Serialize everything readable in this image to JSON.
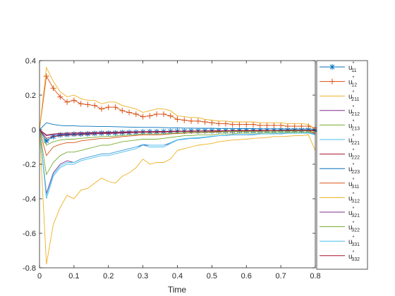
{
  "chart_data": {
    "type": "line",
    "title": "",
    "xlabel": "Time",
    "ylabel": "",
    "xlim": [
      0,
      0.8
    ],
    "ylim": [
      -0.8,
      0.4
    ],
    "xticks": [
      "0",
      "0.1",
      "0.2",
      "0.3",
      "0.4",
      "0.5",
      "0.6",
      "0.7",
      "0.8"
    ],
    "yticks": [
      "0.4",
      "0.2",
      "0",
      "-0.2",
      "-0.4",
      "-0.6",
      "-0.8"
    ],
    "grid": false,
    "legend_position": "outside right",
    "x": [
      0,
      0.02,
      0.04,
      0.06,
      0.08,
      0.1,
      0.12,
      0.14,
      0.16,
      0.18,
      0.2,
      0.22,
      0.24,
      0.26,
      0.28,
      0.3,
      0.32,
      0.34,
      0.36,
      0.38,
      0.4,
      0.42,
      0.44,
      0.46,
      0.48,
      0.5,
      0.52,
      0.54,
      0.56,
      0.58,
      0.6,
      0.62,
      0.64,
      0.66,
      0.68,
      0.7,
      0.72,
      0.74,
      0.76,
      0.78,
      0.8
    ],
    "series": [
      {
        "name": "u*11",
        "base": "u",
        "sub": "11",
        "color": "#0072BD",
        "marker": "star",
        "values": [
          0,
          -0.065,
          -0.04,
          -0.03,
          -0.028,
          -0.026,
          -0.025,
          -0.024,
          -0.022,
          -0.02,
          -0.02,
          -0.019,
          -0.017,
          -0.016,
          -0.015,
          -0.013,
          -0.012,
          -0.012,
          -0.011,
          -0.01,
          -0.009,
          -0.009,
          -0.008,
          -0.008,
          -0.007,
          -0.007,
          -0.006,
          -0.006,
          -0.006,
          -0.005,
          -0.005,
          -0.005,
          -0.004,
          -0.004,
          -0.004,
          -0.003,
          -0.003,
          -0.003,
          -0.003,
          -0.002,
          -0.005
        ]
      },
      {
        "name": "u*12",
        "base": "u",
        "sub": "12",
        "color": "#D95319",
        "marker": "plus",
        "values": [
          0,
          0.31,
          0.24,
          0.19,
          0.16,
          0.17,
          0.15,
          0.145,
          0.14,
          0.12,
          0.13,
          0.13,
          0.11,
          0.1,
          0.09,
          0.075,
          0.08,
          0.09,
          0.09,
          0.08,
          0.06,
          0.055,
          0.05,
          0.05,
          0.045,
          0.04,
          0.035,
          0.035,
          0.03,
          0.03,
          0.03,
          0.03,
          0.025,
          0.025,
          0.025,
          0.025,
          0.02,
          0.02,
          0.02,
          0.02,
          0.01
        ]
      },
      {
        "name": "u*211",
        "base": "u",
        "sub": "211",
        "color": "#EDB120",
        "marker": "none",
        "values": [
          0,
          0.36,
          0.28,
          0.22,
          0.19,
          0.2,
          0.18,
          0.17,
          0.17,
          0.15,
          0.16,
          0.16,
          0.14,
          0.13,
          0.12,
          0.1,
          0.11,
          0.12,
          0.12,
          0.11,
          0.08,
          0.075,
          0.07,
          0.07,
          0.06,
          0.055,
          0.05,
          0.05,
          0.045,
          0.045,
          0.045,
          0.045,
          0.04,
          0.04,
          0.04,
          0.04,
          0.035,
          0.035,
          0.035,
          0.03,
          0.0
        ]
      },
      {
        "name": "u*212",
        "base": "u",
        "sub": "212",
        "color": "#7E2F8E",
        "marker": "none",
        "values": [
          0,
          -0.37,
          -0.25,
          -0.2,
          -0.18,
          -0.19,
          -0.17,
          -0.16,
          -0.15,
          -0.14,
          -0.14,
          -0.13,
          -0.12,
          -0.11,
          -0.1,
          -0.09,
          -0.09,
          -0.09,
          -0.09,
          -0.08,
          -0.06,
          -0.055,
          -0.05,
          -0.05,
          -0.045,
          -0.04,
          -0.035,
          -0.035,
          -0.03,
          -0.03,
          -0.03,
          -0.03,
          -0.025,
          -0.025,
          -0.025,
          -0.025,
          -0.02,
          -0.02,
          -0.02,
          -0.02,
          -0.025
        ]
      },
      {
        "name": "u*213",
        "base": "u",
        "sub": "213",
        "color": "#77AC30",
        "marker": "none",
        "values": [
          0,
          -0.26,
          -0.19,
          -0.15,
          -0.13,
          -0.13,
          -0.12,
          -0.11,
          -0.1,
          -0.09,
          -0.09,
          -0.08,
          -0.07,
          -0.065,
          -0.06,
          -0.055,
          -0.055,
          -0.055,
          -0.05,
          -0.045,
          -0.04,
          -0.035,
          -0.035,
          -0.03,
          -0.03,
          -0.03,
          -0.025,
          -0.025,
          -0.025,
          -0.02,
          -0.02,
          -0.02,
          -0.02,
          -0.018,
          -0.018,
          -0.016,
          -0.016,
          -0.015,
          -0.015,
          -0.015,
          -0.02
        ]
      },
      {
        "name": "u*221",
        "base": "u",
        "sub": "221",
        "color": "#4DBEEE",
        "marker": "none",
        "values": [
          0,
          -0.4,
          -0.27,
          -0.22,
          -0.2,
          -0.2,
          -0.18,
          -0.17,
          -0.16,
          -0.15,
          -0.15,
          -0.14,
          -0.13,
          -0.12,
          -0.11,
          -0.09,
          -0.1,
          -0.1,
          -0.1,
          -0.08,
          -0.06,
          -0.055,
          -0.05,
          -0.05,
          -0.045,
          -0.04,
          -0.035,
          -0.035,
          -0.03,
          -0.03,
          -0.03,
          -0.03,
          -0.025,
          -0.025,
          -0.025,
          -0.025,
          -0.02,
          -0.02,
          -0.02,
          -0.02,
          -0.03
        ]
      },
      {
        "name": "u*222",
        "base": "u",
        "sub": "222",
        "color": "#A2142F",
        "marker": "none",
        "values": [
          0,
          -0.03,
          -0.025,
          -0.022,
          -0.02,
          -0.019,
          -0.018,
          -0.017,
          -0.016,
          -0.015,
          -0.014,
          -0.014,
          -0.013,
          -0.012,
          -0.012,
          -0.011,
          -0.011,
          -0.01,
          -0.01,
          -0.009,
          -0.008,
          -0.008,
          -0.007,
          -0.007,
          -0.007,
          -0.006,
          -0.006,
          -0.006,
          -0.005,
          -0.005,
          -0.005,
          -0.005,
          -0.004,
          -0.004,
          -0.004,
          -0.004,
          -0.003,
          -0.003,
          -0.003,
          -0.003,
          -0.004
        ]
      },
      {
        "name": "u*223",
        "base": "u",
        "sub": "223",
        "color": "#0072BD",
        "marker": "none",
        "values": [
          0,
          0.04,
          0.03,
          0.025,
          0.022,
          0.022,
          0.02,
          0.02,
          0.019,
          0.018,
          0.018,
          0.017,
          0.016,
          0.015,
          0.014,
          0.013,
          0.013,
          0.013,
          0.012,
          0.011,
          0.01,
          0.009,
          0.009,
          0.008,
          0.008,
          0.008,
          0.007,
          0.007,
          0.007,
          0.006,
          0.006,
          0.006,
          0.005,
          0.005,
          0.005,
          0.005,
          0.004,
          0.004,
          0.004,
          0.004,
          0.003
        ]
      },
      {
        "name": "u*311",
        "base": "u",
        "sub": "311",
        "color": "#D95319",
        "marker": "none",
        "values": [
          0,
          -0.15,
          -0.1,
          -0.085,
          -0.075,
          -0.075,
          -0.065,
          -0.06,
          -0.055,
          -0.05,
          -0.05,
          -0.045,
          -0.04,
          -0.037,
          -0.034,
          -0.03,
          -0.03,
          -0.03,
          -0.028,
          -0.025,
          -0.022,
          -0.02,
          -0.018,
          -0.017,
          -0.016,
          -0.015,
          -0.014,
          -0.013,
          -0.012,
          -0.011,
          -0.011,
          -0.01,
          -0.01,
          -0.009,
          -0.009,
          -0.008,
          -0.008,
          -0.008,
          -0.007,
          -0.007,
          -0.02
        ]
      },
      {
        "name": "u*312",
        "base": "u",
        "sub": "312",
        "color": "#EDB120",
        "marker": "none",
        "values": [
          0,
          -0.78,
          -0.55,
          -0.45,
          -0.38,
          -0.4,
          -0.35,
          -0.34,
          -0.31,
          -0.28,
          -0.3,
          -0.31,
          -0.27,
          -0.25,
          -0.22,
          -0.17,
          -0.2,
          -0.19,
          -0.19,
          -0.17,
          -0.12,
          -0.11,
          -0.1,
          -0.09,
          -0.085,
          -0.08,
          -0.07,
          -0.065,
          -0.06,
          -0.058,
          -0.055,
          -0.05,
          -0.048,
          -0.045,
          -0.04,
          -0.04,
          -0.038,
          -0.035,
          -0.035,
          -0.03,
          -0.12
        ]
      },
      {
        "name": "u*321",
        "base": "u",
        "sub": "321",
        "color": "#7E2F8E",
        "marker": "none",
        "values": [
          0,
          -0.035,
          -0.03,
          -0.027,
          -0.025,
          -0.024,
          -0.022,
          -0.021,
          -0.02,
          -0.019,
          -0.018,
          -0.017,
          -0.016,
          -0.015,
          -0.014,
          -0.013,
          -0.013,
          -0.012,
          -0.012,
          -0.011,
          -0.01,
          -0.009,
          -0.009,
          -0.008,
          -0.008,
          -0.007,
          -0.007,
          -0.007,
          -0.006,
          -0.006,
          -0.006,
          -0.005,
          -0.005,
          -0.005,
          -0.005,
          -0.004,
          -0.004,
          -0.004,
          -0.004,
          -0.004,
          -0.004
        ]
      },
      {
        "name": "u*322",
        "base": "u",
        "sub": "322",
        "color": "#77AC30",
        "marker": "none",
        "values": [
          0,
          -0.09,
          -0.07,
          -0.06,
          -0.055,
          -0.055,
          -0.05,
          -0.047,
          -0.044,
          -0.04,
          -0.04,
          -0.037,
          -0.034,
          -0.031,
          -0.028,
          -0.025,
          -0.025,
          -0.025,
          -0.024,
          -0.022,
          -0.019,
          -0.017,
          -0.016,
          -0.015,
          -0.014,
          -0.013,
          -0.012,
          -0.012,
          -0.011,
          -0.01,
          -0.01,
          -0.01,
          -0.009,
          -0.009,
          -0.009,
          -0.008,
          -0.008,
          -0.008,
          -0.007,
          -0.007,
          -0.008
        ]
      },
      {
        "name": "u*331",
        "base": "u",
        "sub": "331",
        "color": "#4DBEEE",
        "marker": "none",
        "values": [
          0,
          -0.38,
          -0.26,
          -0.21,
          -0.19,
          -0.19,
          -0.17,
          -0.16,
          -0.15,
          -0.14,
          -0.14,
          -0.13,
          -0.12,
          -0.11,
          -0.1,
          -0.085,
          -0.09,
          -0.09,
          -0.09,
          -0.075,
          -0.058,
          -0.052,
          -0.048,
          -0.046,
          -0.042,
          -0.038,
          -0.034,
          -0.033,
          -0.03,
          -0.028,
          -0.028,
          -0.027,
          -0.024,
          -0.024,
          -0.023,
          -0.022,
          -0.02,
          -0.02,
          -0.02,
          -0.018,
          -0.028
        ]
      },
      {
        "name": "u*332",
        "base": "u",
        "sub": "332",
        "color": "#A2142F",
        "marker": "none",
        "values": [
          0,
          -0.05,
          -0.04,
          -0.035,
          -0.032,
          -0.031,
          -0.029,
          -0.027,
          -0.025,
          -0.023,
          -0.023,
          -0.021,
          -0.02,
          -0.018,
          -0.017,
          -0.015,
          -0.015,
          -0.015,
          -0.014,
          -0.013,
          -0.011,
          -0.01,
          -0.01,
          -0.009,
          -0.009,
          -0.008,
          -0.008,
          -0.007,
          -0.007,
          -0.006,
          -0.006,
          -0.006,
          -0.006,
          -0.005,
          -0.005,
          -0.005,
          -0.005,
          -0.004,
          -0.004,
          -0.004,
          -0.006
        ]
      }
    ]
  }
}
